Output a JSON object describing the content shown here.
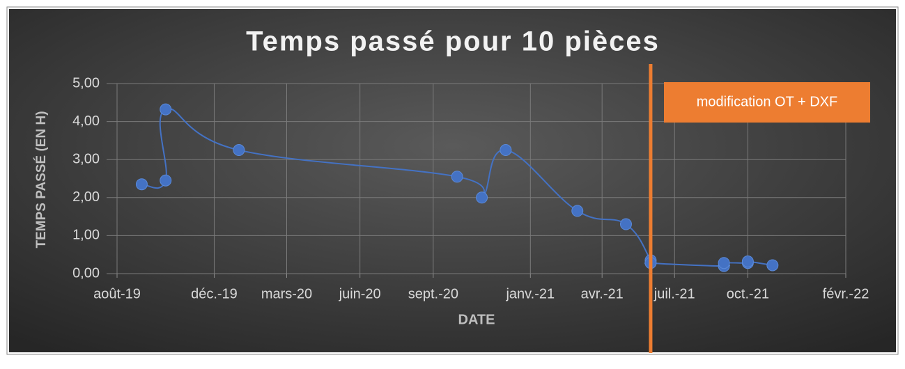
{
  "chart_data": {
    "type": "line",
    "title": "Temps passé pour 10 pièces",
    "y_label": "TEMPS PASSÉ (EN H)",
    "x_label": "DATE",
    "x": [
      "2019-09",
      "2019-10",
      "2019-10",
      "2020-01",
      "2020-10",
      "2020-11",
      "2020-12",
      "2021-03",
      "2021-05",
      "2021-06",
      "2021-06",
      "2021-09",
      "2021-09",
      "2021-10",
      "2021-10",
      "2021-11"
    ],
    "series": [
      {
        "color": "#4472c4",
        "values": [
          2.35,
          2.45,
          4.32,
          3.25,
          2.55,
          2.0,
          3.25,
          1.65,
          1.3,
          0.35,
          0.28,
          0.2,
          0.28,
          0.28,
          0.32,
          0.22
        ]
      }
    ],
    "xlim": [
      "2019-08",
      "2022-02"
    ],
    "xticks": [
      {
        "value": "2019-08",
        "label": "août-19"
      },
      {
        "value": "2019-12",
        "label": "déc.-19"
      },
      {
        "value": "2020-03",
        "label": "mars-20"
      },
      {
        "value": "2020-06",
        "label": "juin-20"
      },
      {
        "value": "2020-09",
        "label": "sept.-20"
      },
      {
        "value": "2021-01",
        "label": "janv.-21"
      },
      {
        "value": "2021-04",
        "label": "avr.-21"
      },
      {
        "value": "2021-07",
        "label": "juil.-21"
      },
      {
        "value": "2021-10",
        "label": "oct.-21"
      },
      {
        "value": "2022-02",
        "label": "févr.-22"
      }
    ],
    "ylim": [
      0,
      5
    ],
    "yticks": [
      {
        "value": 0,
        "label": "0,00"
      },
      {
        "value": 1,
        "label": "1,00"
      },
      {
        "value": 2,
        "label": "2,00"
      },
      {
        "value": 3,
        "label": "3,00"
      },
      {
        "value": 4,
        "label": "4,00"
      },
      {
        "value": 5,
        "label": "5,00"
      }
    ],
    "grid": true,
    "annotations": [
      {
        "x": "2021-06",
        "text": "modification OT + DXF",
        "color": "#ed7d31"
      }
    ]
  }
}
